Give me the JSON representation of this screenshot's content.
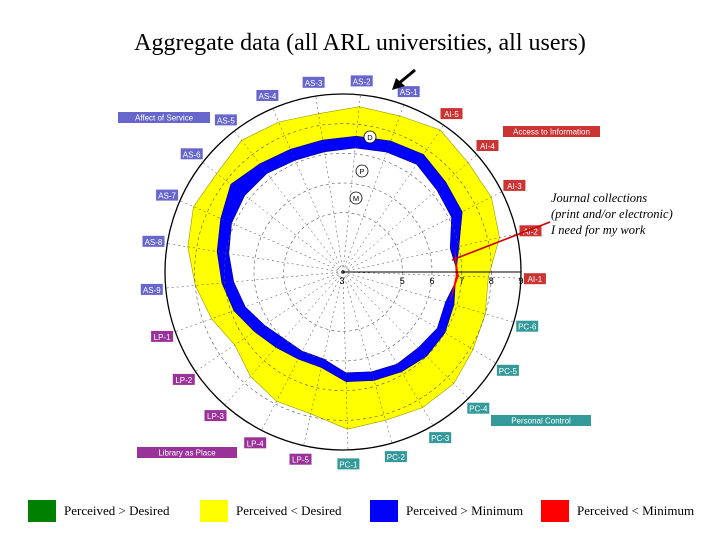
{
  "title": "Aggregate data (all ARL universities, all users)",
  "annotation": [
    "Journal collections",
    "(print and/or electronic)",
    "I need for my work"
  ],
  "legend": [
    {
      "label": "Perceived > Desired",
      "color": "#008000"
    },
    {
      "label": "Perceived < Desired",
      "color": "#ffff00"
    },
    {
      "label": "Perceived > Minimum",
      "color": "#0000ff"
    },
    {
      "label": "Perceived < Minimum",
      "color": "#ff0000"
    }
  ],
  "chart_data": {
    "type": "radar",
    "scale_ticks": [
      "3",
      "5",
      "6",
      "7",
      "8",
      "9"
    ],
    "markers": [
      "D",
      "P",
      "M"
    ],
    "dimensions": [
      {
        "label": "AS-1",
        "group": "Affect of Service"
      },
      {
        "label": "AI-5",
        "group": "Access to Information"
      },
      {
        "label": "AI-4",
        "group": "Access to Information"
      },
      {
        "label": "AI-3",
        "group": "Access to Information"
      },
      {
        "label": "AI-2",
        "group": "Access to Information"
      },
      {
        "label": "AI-1",
        "group": "Access to Information"
      },
      {
        "label": "PC-6",
        "group": "Personal Control"
      },
      {
        "label": "PC-5",
        "group": "Personal Control"
      },
      {
        "label": "PC-4",
        "group": "Personal Control"
      },
      {
        "label": "PC-3",
        "group": "Personal Control"
      },
      {
        "label": "PC-2",
        "group": "Personal Control"
      },
      {
        "label": "PC-1",
        "group": "Personal Control"
      },
      {
        "label": "LP-5",
        "group": "Library as Place"
      },
      {
        "label": "LP-4",
        "group": "Library as Place"
      },
      {
        "label": "LP-3",
        "group": "Library as Place"
      },
      {
        "label": "LP-2",
        "group": "Library as Place"
      },
      {
        "label": "LP-1",
        "group": "Library as Place"
      },
      {
        "label": "AS-9",
        "group": "Affect of Service"
      },
      {
        "label": "AS-8",
        "group": "Affect of Service"
      },
      {
        "label": "AS-7",
        "group": "Affect of Service"
      },
      {
        "label": "AS-6",
        "group": "Affect of Service"
      },
      {
        "label": "AS-5",
        "group": "Affect of Service"
      },
      {
        "label": "AS-4",
        "group": "Affect of Service"
      },
      {
        "label": "AS-3",
        "group": "Affect of Service"
      },
      {
        "label": "AS-2",
        "group": "Affect of Service"
      }
    ],
    "dimension_colors": {
      "Affect of Service": "#6666cc",
      "Access to Information": "#cc3333",
      "Personal Control": "#339999",
      "Library as Place": "#993399"
    },
    "groups": [
      {
        "name": "Affect of Service",
        "color": "#6666cc"
      },
      {
        "name": "Access to Information",
        "color": "#cc3333"
      },
      {
        "name": "Personal Control",
        "color": "#339999"
      },
      {
        "name": "Library as Place",
        "color": "#993399"
      }
    ],
    "series": [
      {
        "name": "Desired",
        "values": [
          8.6,
          8.8,
          8.6,
          8.6,
          8.4,
          7.9,
          8.0,
          8.1,
          8.3,
          8.3,
          8.2,
          8.3,
          7.9,
          7.9,
          7.7,
          7.4,
          7.7,
          8.0,
          8.3,
          8.5,
          8.4,
          8.6,
          8.5,
          8.4,
          8.6
        ]
      },
      {
        "name": "Perceived",
        "values": [
          7.7,
          7.8,
          7.6,
          7.5,
          7.0,
          6.8,
          6.9,
          7.0,
          7.0,
          6.9,
          6.8,
          6.7,
          6.3,
          6.3,
          6.4,
          6.6,
          6.9,
          7.1,
          7.3,
          7.5,
          7.8,
          7.6,
          7.5,
          7.5,
          7.6
        ]
      },
      {
        "name": "Minimum",
        "values": [
          7.3,
          7.4,
          7.2,
          7.1,
          6.7,
          6.9,
          6.6,
          6.7,
          6.6,
          6.6,
          6.5,
          6.4,
          6.0,
          6.0,
          6.0,
          6.2,
          6.5,
          6.7,
          6.9,
          7.1,
          7.2,
          7.2,
          7.1,
          7.1,
          7.2
        ]
      }
    ]
  }
}
